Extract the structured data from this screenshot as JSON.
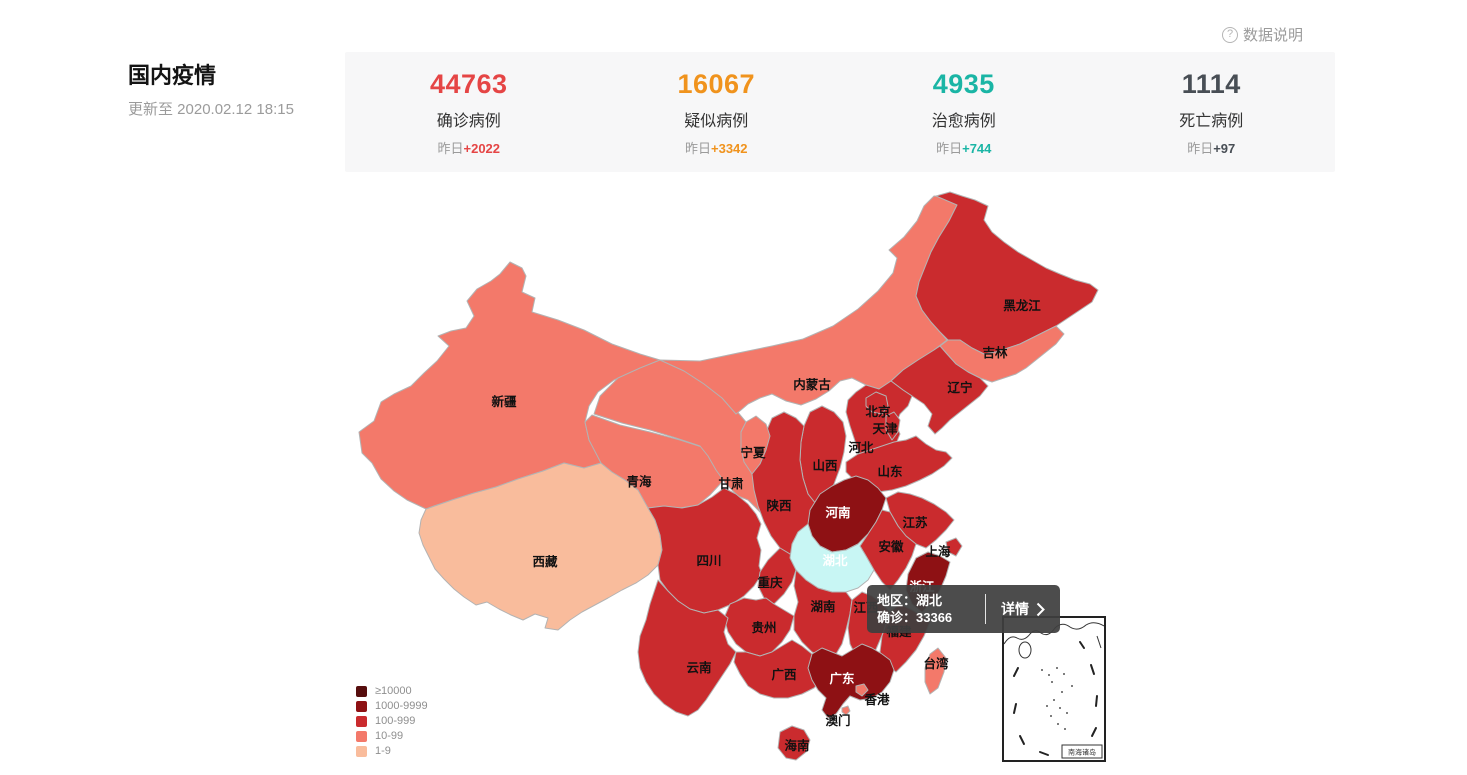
{
  "header": {
    "title": "国内疫情",
    "updated": "更新至 2020.02.12 18:15",
    "data_note": "数据说明",
    "help_icon": "question-circle-icon"
  },
  "stats": {
    "items": [
      {
        "id": "confirmed",
        "value": "44763",
        "label": "确诊病例",
        "delta_prefix": "昨日",
        "delta": "+2022",
        "color": "#e54545"
      },
      {
        "id": "suspected",
        "value": "16067",
        "label": "疑似病例",
        "delta_prefix": "昨日",
        "delta": "+3342",
        "color": "#f0931d"
      },
      {
        "id": "cured",
        "value": "4935",
        "label": "治愈病例",
        "delta_prefix": "昨日",
        "delta": "+744",
        "color": "#1ab5a5"
      },
      {
        "id": "death",
        "value": "1114",
        "label": "死亡病例",
        "delta_prefix": "昨日",
        "delta": "+97",
        "color": "#484e55"
      }
    ]
  },
  "legend": {
    "items": [
      {
        "label": "≥10000",
        "color": "#560d0d",
        "level": 5
      },
      {
        "label": "1000-9999",
        "color": "#8e1114",
        "level": 4
      },
      {
        "label": "100-999",
        "color": "#ca2b2e",
        "level": 3
      },
      {
        "label": "10-99",
        "color": "#f3796a",
        "level": 2
      },
      {
        "label": "1-9",
        "color": "#f9bc9c",
        "level": 1
      }
    ]
  },
  "map": {
    "highlight_color": "#c8f6f4",
    "border_color": "#b3b3b3",
    "provinces": [
      {
        "id": "xinjiang",
        "label": "新疆",
        "level": 2
      },
      {
        "id": "xizang",
        "label": "西藏",
        "level": 1
      },
      {
        "id": "qinghai",
        "label": "青海",
        "level": 2
      },
      {
        "id": "gansu",
        "label": "甘肃",
        "level": 2
      },
      {
        "id": "neimenggu",
        "label": "内蒙古",
        "level": 2
      },
      {
        "id": "heilongjiang",
        "label": "黑龙江",
        "level": 3
      },
      {
        "id": "jilin",
        "label": "吉林",
        "level": 2
      },
      {
        "id": "liaoning",
        "label": "辽宁",
        "level": 3
      },
      {
        "id": "hebei",
        "label": "河北",
        "level": 3
      },
      {
        "id": "beijing",
        "label": "北京",
        "level": 3
      },
      {
        "id": "tianjin",
        "label": "天津",
        "level": 3
      },
      {
        "id": "shanxi",
        "label": "山西",
        "level": 3
      },
      {
        "id": "shandong",
        "label": "山东",
        "level": 3
      },
      {
        "id": "shaanxi",
        "label": "陕西",
        "level": 3
      },
      {
        "id": "ningxia",
        "label": "宁夏",
        "level": 2
      },
      {
        "id": "henan",
        "label": "河南",
        "level": 4,
        "label_color": "#ffffff"
      },
      {
        "id": "jiangsu",
        "label": "江苏",
        "level": 3
      },
      {
        "id": "anhui",
        "label": "安徽",
        "level": 3
      },
      {
        "id": "shanghai",
        "label": "上海",
        "level": 3
      },
      {
        "id": "sichuan",
        "label": "四川",
        "level": 3
      },
      {
        "id": "chongqing",
        "label": "重庆",
        "level": 3
      },
      {
        "id": "hubei",
        "label": "湖北",
        "level": 5,
        "highlighted": true,
        "label_color": "#ffffff"
      },
      {
        "id": "hunan",
        "label": "湖南",
        "level": 3
      },
      {
        "id": "jiangxi",
        "label": "江西",
        "level": 3
      },
      {
        "id": "zhejiang",
        "label": "浙江",
        "level": 4,
        "label_color": "#ffffff"
      },
      {
        "id": "fujian",
        "label": "福建",
        "level": 3
      },
      {
        "id": "guizhou",
        "label": "贵州",
        "level": 3
      },
      {
        "id": "yunnan",
        "label": "云南",
        "level": 3
      },
      {
        "id": "guangxi",
        "label": "广西",
        "level": 3
      },
      {
        "id": "guangdong",
        "label": "广东",
        "level": 4,
        "label_color": "#ffffff"
      },
      {
        "id": "taiwan",
        "label": "台湾",
        "level": 2
      },
      {
        "id": "hongkong",
        "label": "香港",
        "level": 2
      },
      {
        "id": "macau",
        "label": "澳门",
        "level": 2
      },
      {
        "id": "hainan",
        "label": "海南",
        "level": 3
      }
    ]
  },
  "tooltip": {
    "region": "地区：湖北",
    "confirmed": "确诊：33366",
    "details": "详情"
  },
  "inset": {
    "label": "南海诸岛"
  }
}
